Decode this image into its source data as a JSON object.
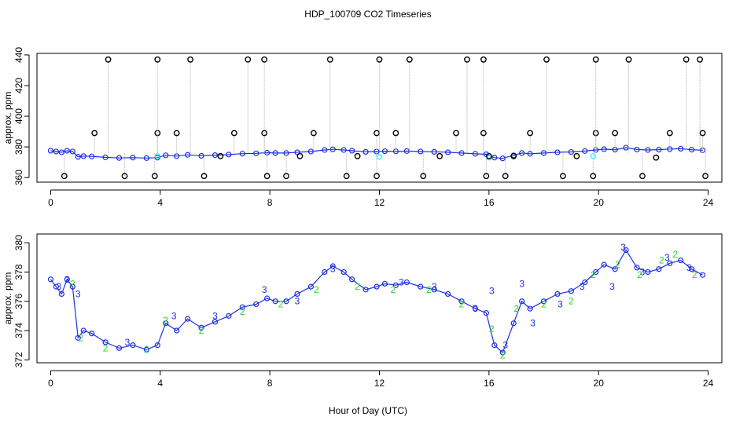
{
  "page_title": "HDP_100709  CO2 Timeseries",
  "shared_xlabel": "Hour of Day (UTC)",
  "colors": {
    "axis": "#000000",
    "top_main": "#1f2fe0",
    "top_alt": "#00ffff",
    "top_spike_line": "#b0b0b0",
    "top_spike_marker": "#000000",
    "bottom_main": "#1f2fe0",
    "bottom_label3": "#1f2fe0",
    "bottom_label2": "#2fcf2f"
  },
  "chart_data": [
    {
      "type": "scatter",
      "title": "",
      "xlabel": "",
      "ylabel": "approx. ppm",
      "xlim": [
        -0.5,
        24.5
      ],
      "ylim": [
        357,
        441
      ],
      "xticks": [
        0,
        4,
        8,
        12,
        16,
        20,
        24
      ],
      "yticks": [
        360,
        380,
        400,
        420,
        440
      ],
      "grid": false,
      "legend": null,
      "series": [
        {
          "role": "main",
          "marker": "circle",
          "x": [
            0.0,
            0.2,
            0.4,
            0.6,
            0.8,
            1.0,
            1.2,
            1.5,
            2.0,
            2.5,
            3.0,
            3.5,
            3.9,
            4.2,
            4.6,
            5.0,
            5.5,
            6.0,
            6.5,
            7.0,
            7.5,
            7.9,
            8.2,
            8.6,
            9.0,
            9.5,
            10.0,
            10.3,
            10.7,
            11.0,
            11.5,
            11.9,
            12.2,
            12.6,
            13.0,
            13.5,
            14.0,
            14.5,
            15.0,
            15.5,
            15.9,
            16.2,
            16.5,
            16.9,
            17.2,
            17.5,
            18.0,
            18.5,
            19.0,
            19.5,
            19.9,
            20.2,
            20.6,
            21.0,
            21.4,
            21.8,
            22.2,
            22.6,
            23.0,
            23.4,
            23.8
          ],
          "y": [
            377.5,
            377.0,
            376.5,
            377.5,
            377.0,
            373.5,
            374.0,
            373.8,
            373.2,
            372.8,
            373.0,
            372.7,
            373.0,
            374.5,
            374.0,
            374.8,
            374.2,
            374.6,
            375.0,
            375.6,
            375.8,
            376.2,
            376.0,
            376.0,
            376.5,
            377.0,
            378.0,
            378.4,
            378.0,
            377.5,
            376.8,
            377.0,
            377.2,
            377.1,
            377.3,
            377.0,
            376.8,
            376.5,
            376.0,
            375.5,
            375.2,
            373.0,
            372.5,
            374.5,
            376.0,
            375.5,
            376.0,
            376.5,
            376.7,
            377.3,
            378.0,
            378.5,
            378.2,
            379.5,
            378.3,
            378.0,
            378.2,
            378.6,
            378.8,
            378.2,
            377.8
          ]
        },
        {
          "role": "alt",
          "marker": "circle",
          "x": [
            3.9,
            12.0,
            16.0,
            19.8
          ],
          "y": [
            374.0,
            373.5,
            373.0,
            374.0
          ]
        },
        {
          "role": "spikes",
          "marker": "circle",
          "x": [
            0.5,
            1.6,
            2.1,
            2.7,
            3.8,
            3.9,
            3.9,
            4.6,
            5.1,
            5.6,
            6.2,
            6.7,
            7.2,
            7.8,
            7.8,
            7.9,
            8.6,
            9.1,
            9.6,
            10.2,
            10.8,
            11.2,
            11.9,
            11.9,
            12.0,
            12.6,
            13.1,
            13.6,
            14.2,
            14.8,
            15.2,
            15.8,
            15.8,
            15.9,
            16.0,
            16.6,
            16.9,
            17.5,
            18.1,
            18.7,
            19.2,
            19.8,
            19.9,
            19.9,
            20.6,
            21.1,
            21.6,
            22.1,
            22.6,
            23.2,
            23.7,
            23.8,
            23.9
          ],
          "y": [
            361,
            389,
            437,
            361,
            361,
            389,
            437,
            389,
            437,
            361,
            374,
            389,
            437,
            437,
            389,
            361,
            361,
            374,
            389,
            437,
            361,
            374,
            361,
            389,
            437,
            389,
            437,
            361,
            374,
            389,
            437,
            437,
            389,
            361,
            374,
            361,
            374,
            389,
            437,
            361,
            374,
            361,
            389,
            437,
            389,
            437,
            361,
            373,
            389,
            437,
            437,
            389,
            361
          ]
        }
      ]
    },
    {
      "type": "scatter",
      "title": "",
      "xlabel": "Hour of Day (UTC)",
      "ylabel": "approx. ppm",
      "xlim": [
        -0.5,
        24.5
      ],
      "ylim": [
        371.8,
        380.6
      ],
      "xticks": [
        0,
        4,
        8,
        12,
        16,
        20,
        24
      ],
      "yticks": [
        372,
        374,
        376,
        378,
        380
      ],
      "grid": false,
      "legend": null,
      "series": [
        {
          "role": "main",
          "marker": "circle",
          "x": [
            0.0,
            0.2,
            0.4,
            0.6,
            0.8,
            1.0,
            1.2,
            1.5,
            2.0,
            2.5,
            3.0,
            3.5,
            3.9,
            4.2,
            4.6,
            5.0,
            5.5,
            6.0,
            6.5,
            7.0,
            7.5,
            7.9,
            8.2,
            8.6,
            9.0,
            9.5,
            10.0,
            10.3,
            10.7,
            11.0,
            11.5,
            11.9,
            12.2,
            12.6,
            13.0,
            13.5,
            14.0,
            14.5,
            15.0,
            15.5,
            15.9,
            16.2,
            16.5,
            16.9,
            17.2,
            17.5,
            18.0,
            18.5,
            19.0,
            19.5,
            19.9,
            20.2,
            20.6,
            21.0,
            21.4,
            21.8,
            22.2,
            22.6,
            23.0,
            23.4,
            23.8
          ],
          "y": [
            377.5,
            377.0,
            376.5,
            377.5,
            377.0,
            373.5,
            374.0,
            373.8,
            373.2,
            372.8,
            373.0,
            372.7,
            373.0,
            374.5,
            374.0,
            374.8,
            374.2,
            374.6,
            375.0,
            375.6,
            375.8,
            376.2,
            376.0,
            376.0,
            376.5,
            377.0,
            378.0,
            378.4,
            378.0,
            377.5,
            376.8,
            377.0,
            377.2,
            377.1,
            377.3,
            377.0,
            376.8,
            376.5,
            376.0,
            375.5,
            375.2,
            373.0,
            372.5,
            374.5,
            376.0,
            375.5,
            376.0,
            376.5,
            376.7,
            377.3,
            378.0,
            378.5,
            378.2,
            379.5,
            378.3,
            378.0,
            378.2,
            378.6,
            378.8,
            378.2,
            377.8
          ]
        },
        {
          "role": "label3",
          "marker": "text",
          "label": "3",
          "x": [
            0.3,
            0.6,
            1.0,
            2.8,
            4.5,
            6.0,
            7.8,
            9.0,
            10.3,
            12.8,
            14.0,
            15.5,
            16.1,
            16.6,
            17.2,
            17.6,
            18.6,
            19.4,
            20.5,
            20.9,
            21.6,
            22.5,
            23.3
          ],
          "y": [
            377.0,
            377.5,
            376.5,
            373.2,
            375.0,
            375.0,
            376.8,
            376.0,
            378.2,
            377.3,
            377.0,
            375.5,
            376.7,
            373.0,
            377.2,
            374.5,
            375.8,
            377.0,
            377.0,
            379.7,
            378.0,
            379.0,
            378.3
          ]
        },
        {
          "role": "label2",
          "marker": "text",
          "label": "2",
          "x": [
            0.8,
            1.1,
            2.0,
            3.5,
            4.2,
            5.5,
            7.0,
            8.4,
            9.7,
            11.2,
            12.5,
            13.8,
            15.0,
            16.1,
            16.5,
            17.0,
            18.0,
            19.0,
            19.8,
            20.7,
            21.5,
            22.3,
            22.8,
            23.5
          ],
          "y": [
            377.2,
            373.5,
            372.8,
            372.7,
            374.7,
            374.0,
            375.3,
            375.8,
            376.8,
            377.0,
            376.8,
            376.8,
            375.8,
            374.1,
            372.3,
            375.5,
            375.8,
            376.0,
            377.8,
            378.5,
            377.8,
            378.8,
            379.2,
            377.8
          ]
        }
      ]
    }
  ]
}
